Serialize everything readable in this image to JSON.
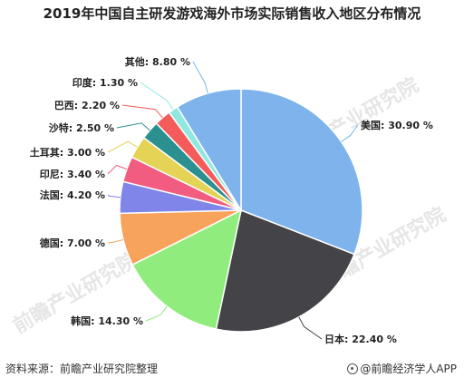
{
  "title": "2019年中国自主研发游戏海外市场实际销售收入地区分布情况",
  "footer": {
    "source": "资料来源：前瞻产业研究院整理",
    "brand": "@前瞻经济学人APP"
  },
  "watermark": "前瞻产业研究院",
  "chart_data": {
    "type": "pie",
    "title": "2019年中国自主研发游戏海外市场实际销售收入地区分布情况",
    "slices": [
      {
        "label": "美国",
        "value": 30.9,
        "display": "美国: 30.90 %",
        "color": "#7eb3ec"
      },
      {
        "label": "日本",
        "value": 22.4,
        "display": "日本: 22.40 %",
        "color": "#434348"
      },
      {
        "label": "韩国",
        "value": 14.3,
        "display": "韩国: 14.30 %",
        "color": "#90ed7d"
      },
      {
        "label": "德国",
        "value": 7.0,
        "display": "德国: 7.00 %",
        "color": "#f7a35c"
      },
      {
        "label": "法国",
        "value": 4.2,
        "display": "法国: 4.20 %",
        "color": "#8085e9"
      },
      {
        "label": "印尼",
        "value": 3.4,
        "display": "印尼: 3.40 %",
        "color": "#f15c80"
      },
      {
        "label": "土耳其",
        "value": 3.0,
        "display": "土耳其: 3.00 %",
        "color": "#e4d354"
      },
      {
        "label": "沙特",
        "value": 2.5,
        "display": "沙特: 2.50 %",
        "color": "#2b908f"
      },
      {
        "label": "巴西",
        "value": 2.2,
        "display": "巴西: 2.20 %",
        "color": "#f45b5b"
      },
      {
        "label": "印度",
        "value": 1.3,
        "display": "印度: 1.30 %",
        "color": "#91e8e1"
      },
      {
        "label": "其他",
        "value": 8.8,
        "display": "其他: 8.80 %",
        "color": "#7eb3ec"
      }
    ],
    "start_angle": "12 o'clock",
    "direction": "clockwise",
    "legend": "none"
  }
}
